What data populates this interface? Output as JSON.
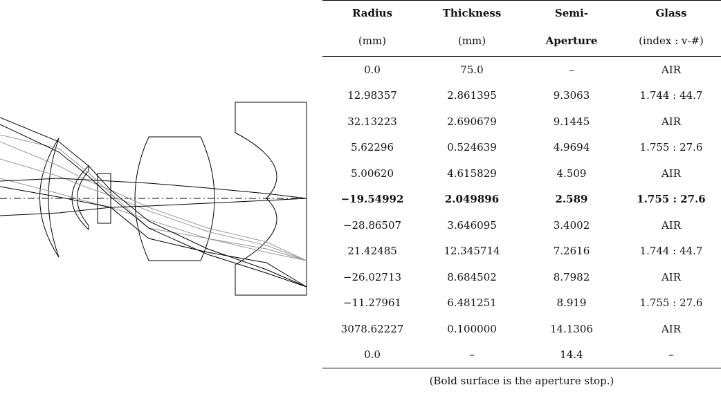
{
  "table": {
    "header": [
      [
        "Radius",
        "Thickness",
        "Semi-",
        "Glass"
      ],
      [
        "(mm)",
        "(mm)",
        "Aperture",
        "(index : v-#)"
      ]
    ],
    "rows": [
      [
        "0.0",
        "75.0",
        "–",
        "AIR"
      ],
      [
        "12.98357",
        "2.861395",
        "9.3063",
        "1.744 : 44.7"
      ],
      [
        "32.13223",
        "2.690679",
        "9.1445",
        "AIR"
      ],
      [
        "5.62296",
        "0.524639",
        "4.9694",
        "1.755 : 27.6"
      ],
      [
        "5.00620",
        "4.615829",
        "4.509",
        "AIR"
      ],
      [
        "−19.54992",
        "2.049896",
        "2.589",
        "1.755 : 27.6"
      ],
      [
        "−28.86507",
        "3.646095",
        "3.4002",
        "AIR"
      ],
      [
        "21.42485",
        "12.345714",
        "7.2616",
        "1.744 : 44.7"
      ],
      [
        "−26.02713",
        "8.684502",
        "8.7982",
        "AIR"
      ],
      [
        "−11.27961",
        "6.481251",
        "8.919",
        "1.755 : 27.6"
      ],
      [
        "3078.62227",
        "0.100000",
        "14.1306",
        "AIR"
      ],
      [
        "0.0",
        "–",
        "14.4",
        "–"
      ]
    ],
    "caption": "(Bold surface is the aperture stop.)"
  }
}
